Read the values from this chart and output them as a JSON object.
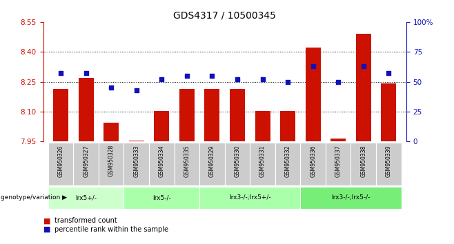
{
  "title": "GDS4317 / 10500345",
  "samples": [
    "GSM950326",
    "GSM950327",
    "GSM950328",
    "GSM950333",
    "GSM950334",
    "GSM950335",
    "GSM950329",
    "GSM950330",
    "GSM950331",
    "GSM950332",
    "GSM950336",
    "GSM950337",
    "GSM950338",
    "GSM950339"
  ],
  "red_values": [
    8.215,
    8.27,
    8.045,
    7.955,
    8.105,
    8.215,
    8.215,
    8.215,
    8.105,
    8.105,
    8.42,
    7.965,
    8.49,
    8.24
  ],
  "blue_values": [
    57,
    57,
    45,
    43,
    52,
    55,
    55,
    52,
    52,
    50,
    63,
    50,
    63,
    57
  ],
  "ymin": 7.95,
  "ymax": 8.55,
  "y2min": 0,
  "y2max": 100,
  "yticks": [
    7.95,
    8.1,
    8.25,
    8.4,
    8.55
  ],
  "y2ticks": [
    0,
    25,
    50,
    75,
    100
  ],
  "bar_color": "#cc1100",
  "dot_color": "#1111bb",
  "bar_width": 0.6,
  "group_configs": [
    {
      "label": "lrx5+/-",
      "start": 0,
      "end": 2,
      "color": "#ccffcc"
    },
    {
      "label": "lrx5-/-",
      "start": 3,
      "end": 5,
      "color": "#aaffaa"
    },
    {
      "label": "lrx3-/-;lrx5+/-",
      "start": 6,
      "end": 9,
      "color": "#aaffaa"
    },
    {
      "label": "lrx3-/-;lrx5-/-",
      "start": 10,
      "end": 13,
      "color": "#77ee77"
    }
  ],
  "legend_red_label": "transformed count",
  "legend_blue_label": "percentile rank within the sample",
  "genotype_label": "genotype/variation",
  "tick_color_left": "#cc1100",
  "tick_color_right": "#1111bb",
  "grid_dotted": [
    8.1,
    8.25,
    8.4
  ],
  "sample_bg": "#cccccc",
  "title_fontsize": 10
}
